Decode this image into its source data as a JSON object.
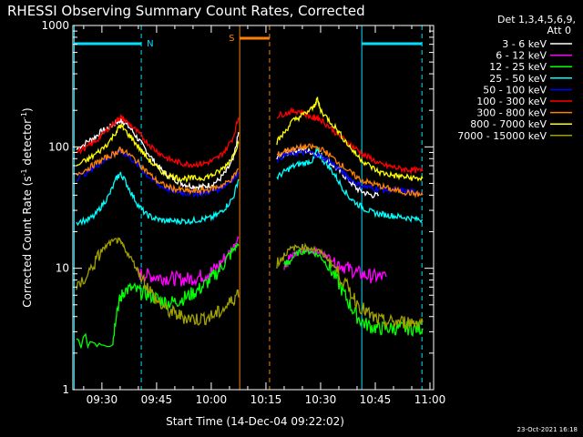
{
  "chart_data": {
    "type": "line",
    "title": "RHESSI Observing Summary Count Rates, Corrected",
    "xlabel": "Start Time (14-Dec-04 09:22:02)",
    "ylabel_main": "Corrected Count Rate (s",
    "ylabel_sup1": "-1",
    "ylabel_mid": " detector",
    "ylabel_sup2": "-1",
    "ylabel_end": ")",
    "footer": "23-Oct-2021 16:18",
    "legend_header_1": "Det 1,3,4,5,6,9,",
    "legend_header_2": "Att 0",
    "x_range": [
      "09:22:02",
      "11:00"
    ],
    "x_ticks": [
      {
        "label": "09:30",
        "t": 30
      },
      {
        "label": "09:45",
        "t": 45
      },
      {
        "label": "10:00",
        "t": 60
      },
      {
        "label": "10:15",
        "t": 75
      },
      {
        "label": "10:30",
        "t": 90
      },
      {
        "label": "10:45",
        "t": 105
      },
      {
        "label": "11:00",
        "t": 120
      }
    ],
    "y_scale": "log",
    "y_range": [
      1,
      1000
    ],
    "y_ticks": [
      {
        "label": "1",
        "v": 1
      },
      {
        "label": "10",
        "v": 10
      },
      {
        "label": "100",
        "v": 100
      },
      {
        "label": "1000",
        "v": 1000
      }
    ],
    "annotations": {
      "night_label": "N",
      "saa_label": "S"
    },
    "series": [
      {
        "name": "3 - 6 keV",
        "color": "#ffffff",
        "t": [
          23,
          26,
          28,
          30,
          32,
          34,
          35,
          36,
          38,
          40,
          42,
          44,
          46,
          48,
          50,
          52,
          54,
          56,
          58,
          60,
          62,
          64,
          66,
          67.5,
          78,
          80,
          82,
          84,
          86,
          88,
          90,
          92,
          94,
          96,
          98,
          100,
          102,
          104,
          106
        ],
        "v": [
          95,
          110,
          120,
          135,
          145,
          160,
          165,
          160,
          140,
          115,
          95,
          78,
          66,
          58,
          54,
          50,
          48,
          47,
          47,
          49,
          53,
          62,
          78,
          130,
          80,
          88,
          92,
          94,
          93,
          90,
          85,
          77,
          68,
          60,
          52,
          45,
          42,
          40,
          40
        ]
      },
      {
        "name": "6 - 12 keV",
        "color": "#ff00ff",
        "t": [
          40,
          42,
          44,
          46,
          48,
          50,
          52,
          54,
          56,
          58,
          60,
          62,
          64,
          66,
          67.5,
          80,
          82,
          84,
          86,
          88,
          90,
          92,
          94,
          96,
          98,
          100,
          102,
          104,
          106,
          108
        ],
        "v": [
          9,
          8.8,
          8.6,
          8.4,
          8.3,
          8.2,
          8.1,
          8.2,
          8.4,
          8.8,
          9.4,
          10.5,
          12.5,
          15,
          18,
          11,
          12.5,
          13.5,
          14,
          14,
          13.5,
          12.5,
          11.5,
          10.5,
          9.8,
          9.2,
          8.8,
          8.6,
          8.5,
          8.5
        ]
      },
      {
        "name": "12 - 25 keV",
        "color": "#00ff00",
        "t": [
          23,
          28,
          33,
          34,
          35,
          36,
          38,
          40,
          42,
          44,
          46,
          48,
          50,
          52,
          54,
          56,
          58,
          60,
          62,
          64,
          66,
          67.5,
          80,
          82,
          84,
          86,
          88,
          90,
          92,
          94,
          96,
          98,
          100,
          102,
          104,
          106,
          108,
          110,
          112,
          114,
          116,
          118
        ],
        "v": [
          2.5,
          2.5,
          2.5,
          4.5,
          5.5,
          6.5,
          6.8,
          6.5,
          6.2,
          5.8,
          5.5,
          5.2,
          5.3,
          5.6,
          6,
          6.5,
          7.2,
          8.2,
          9.5,
          11.5,
          14,
          16,
          10,
          12,
          13.5,
          14,
          13.5,
          12.5,
          10.5,
          8.5,
          6.5,
          5,
          4,
          3.5,
          3.3,
          3.2,
          3.2,
          3.2,
          3.2,
          3.2,
          3.2,
          3.2
        ]
      },
      {
        "name": "25 - 50 keV",
        "color": "#00ffff",
        "t": [
          23,
          26,
          28,
          30,
          32,
          34,
          35,
          36,
          38,
          40,
          42,
          44,
          46,
          48,
          50,
          52,
          54,
          56,
          58,
          60,
          62,
          64,
          66,
          67.5,
          78,
          80,
          82,
          84,
          86,
          88,
          89,
          90,
          92,
          94,
          96,
          98,
          100,
          102,
          104,
          106,
          108,
          110,
          112,
          114,
          116,
          118
        ],
        "v": [
          24,
          25,
          27,
          33,
          40,
          55,
          60,
          55,
          42,
          33,
          28,
          26,
          25,
          24.5,
          24.5,
          24.5,
          24.5,
          25,
          25.5,
          26,
          28,
          32,
          38,
          55,
          56,
          62,
          68,
          72,
          74,
          78,
          95,
          82,
          70,
          58,
          46,
          38,
          34,
          31,
          29,
          28,
          27.5,
          27,
          26.5,
          26,
          25.5,
          25
        ]
      },
      {
        "name": "50 - 100 keV",
        "color": "#0000ff",
        "t": [
          23,
          26,
          28,
          30,
          32,
          34,
          35,
          36,
          38,
          40,
          42,
          44,
          46,
          48,
          50,
          52,
          54,
          56,
          58,
          60,
          62,
          64,
          66,
          67.5,
          78,
          80,
          82,
          84,
          86,
          88,
          90,
          92,
          94,
          96,
          98,
          100,
          102,
          104,
          106,
          108,
          110,
          112,
          114,
          116,
          118
        ],
        "v": [
          55,
          62,
          68,
          75,
          82,
          90,
          92,
          90,
          80,
          70,
          60,
          53,
          48,
          45,
          43,
          42,
          41.5,
          41.5,
          42,
          43,
          45,
          49,
          55,
          62,
          78,
          85,
          88,
          90,
          90,
          88,
          84,
          78,
          70,
          62,
          55,
          50,
          47,
          46,
          45,
          44.5,
          44,
          43.5,
          43,
          42.5,
          42
        ]
      },
      {
        "name": "100 - 300 keV",
        "color": "#ff0000",
        "t": [
          23,
          26,
          28,
          30,
          32,
          34,
          35,
          36,
          38,
          40,
          42,
          44,
          46,
          48,
          50,
          52,
          54,
          56,
          58,
          60,
          62,
          64,
          66,
          67.5,
          78,
          80,
          82,
          84,
          86,
          88,
          89,
          90,
          92,
          94,
          96,
          98,
          100,
          102,
          104,
          106,
          108,
          110,
          112,
          114,
          116,
          118
        ],
        "v": [
          90,
          100,
          110,
          125,
          145,
          165,
          175,
          168,
          150,
          130,
          112,
          98,
          88,
          80,
          76,
          73,
          72,
          72,
          73,
          76,
          82,
          95,
          120,
          175,
          180,
          188,
          195,
          198,
          185,
          172,
          175,
          168,
          150,
          132,
          118,
          105,
          95,
          85,
          80,
          72,
          70,
          68,
          66,
          65,
          64,
          63
        ]
      },
      {
        "name": "300 - 800 keV",
        "color": "#ff8000",
        "t": [
          23,
          26,
          28,
          30,
          32,
          34,
          35,
          36,
          38,
          40,
          42,
          44,
          46,
          48,
          50,
          52,
          54,
          56,
          58,
          60,
          62,
          64,
          66,
          67.5,
          78,
          80,
          82,
          84,
          86,
          88,
          90,
          92,
          94,
          96,
          98,
          100,
          102,
          104,
          106,
          108,
          110,
          112,
          114,
          116,
          118
        ],
        "v": [
          60,
          66,
          72,
          78,
          84,
          90,
          95,
          92,
          84,
          74,
          64,
          56,
          50,
          47,
          45,
          44,
          43,
          43,
          44,
          45,
          47,
          50,
          56,
          66,
          85,
          92,
          96,
          98,
          100,
          100,
          96,
          88,
          78,
          70,
          62,
          56,
          52,
          50,
          48,
          46,
          44,
          43,
          42,
          41,
          40
        ]
      },
      {
        "name": "800 - 7000 keV",
        "color": "#ffff00",
        "t": [
          23,
          26,
          28,
          30,
          32,
          34,
          35,
          36,
          38,
          40,
          42,
          44,
          46,
          48,
          50,
          52,
          54,
          56,
          58,
          60,
          62,
          64,
          66,
          67.5,
          78,
          80,
          82,
          84,
          86,
          88,
          89,
          90,
          92,
          94,
          96,
          98,
          100,
          102,
          104,
          106,
          108,
          110,
          112,
          114,
          116,
          118
        ],
        "v": [
          70,
          78,
          86,
          96,
          110,
          135,
          150,
          140,
          120,
          100,
          84,
          72,
          64,
          59,
          56,
          55,
          55,
          55,
          56,
          58,
          62,
          70,
          85,
          110,
          110,
          130,
          160,
          175,
          190,
          210,
          250,
          200,
          170,
          145,
          120,
          100,
          85,
          75,
          68,
          62,
          60,
          58,
          57,
          56,
          55,
          55
        ]
      },
      {
        "name": "7000 - 15000 keV",
        "color": "#a0a000",
        "t": [
          23,
          26,
          28,
          30,
          32,
          34,
          35,
          36,
          38,
          40,
          42,
          44,
          46,
          48,
          50,
          52,
          54,
          56,
          58,
          60,
          62,
          64,
          66,
          67.5,
          78,
          80,
          82,
          84,
          86,
          88,
          90,
          92,
          94,
          96,
          98,
          100,
          102,
          104,
          106,
          108,
          110,
          112,
          114,
          116,
          118
        ],
        "v": [
          6.5,
          9,
          11,
          14,
          16,
          17,
          16.5,
          15,
          12,
          9.5,
          7.5,
          6,
          5,
          4.5,
          4.2,
          4,
          3.9,
          3.8,
          3.9,
          4,
          4.3,
          4.8,
          5.5,
          6.5,
          11,
          13,
          14.5,
          15,
          15,
          14.5,
          13.5,
          12,
          10,
          8,
          6.5,
          5.2,
          4.5,
          4,
          3.7,
          3.6,
          3.6,
          3.6,
          3.6,
          3.6,
          3.6
        ]
      }
    ]
  }
}
